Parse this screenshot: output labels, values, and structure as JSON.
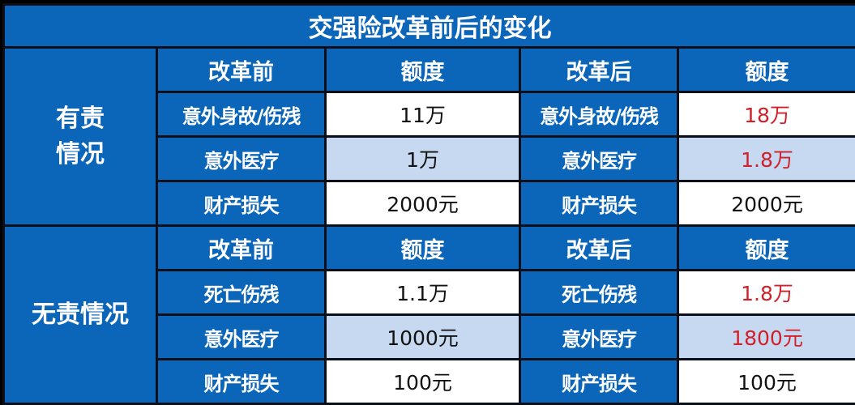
{
  "title": "交强险改革前后的变化",
  "colors": {
    "header_blue": "#0b65b8",
    "alt_row": "#c7d9f0",
    "highlight_red": "#d0202a"
  },
  "sections": [
    {
      "group": "有责\n情况",
      "header": {
        "before": "改革前",
        "before_amount": "额度",
        "after": "改革后",
        "after_amount": "额度"
      },
      "rows": [
        {
          "item_before": "意外身故/伤残",
          "value_before": "11万",
          "item_after": "意外身故/伤残",
          "value_after": "18万",
          "changed": true
        },
        {
          "item_before": "意外医疗",
          "value_before": "1万",
          "item_after": "意外医疗",
          "value_after": "1.8万",
          "changed": true
        },
        {
          "item_before": "财产损失",
          "value_before": "2000元",
          "item_after": "财产损失",
          "value_after": "2000元",
          "changed": false
        }
      ]
    },
    {
      "group": "无责情况",
      "header": {
        "before": "改革前",
        "before_amount": "额度",
        "after": "改革后",
        "after_amount": "额度"
      },
      "rows": [
        {
          "item_before": "死亡伤残",
          "value_before": "1.1万",
          "item_after": "死亡伤残",
          "value_after": "1.8万",
          "changed": true
        },
        {
          "item_before": "意外医疗",
          "value_before": "1000元",
          "item_after": "意外医疗",
          "value_after": "1800元",
          "changed": true
        },
        {
          "item_before": "财产损失",
          "value_before": "100元",
          "item_after": "财产损失",
          "value_after": "100元",
          "changed": false
        }
      ]
    }
  ]
}
